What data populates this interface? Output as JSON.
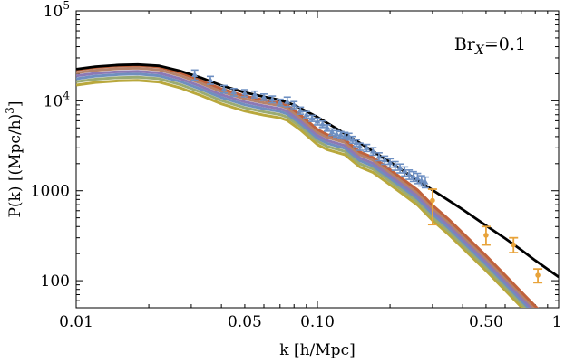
{
  "chart_data": {
    "type": "line",
    "x_scale": "log",
    "y_scale": "log",
    "xlim": [
      0.01,
      1
    ],
    "ylim": [
      50,
      100000
    ],
    "xlabel": "k   [h/Mpc]",
    "ylabel": "P(k)   [(Mpc/h)³]",
    "annotation": {
      "base": "Br",
      "sub": "X",
      "rest": "=0.1",
      "position": "top-right"
    },
    "x_ticks": [
      {
        "value": 0.01,
        "label": "0.01"
      },
      {
        "value": 0.05,
        "label": "0.05"
      },
      {
        "value": 0.1,
        "label": "0.10"
      },
      {
        "value": 0.5,
        "label": "0.50"
      },
      {
        "value": 1,
        "label": "1"
      }
    ],
    "y_ticks": [
      {
        "value": 100,
        "label": "100"
      },
      {
        "value": 1000,
        "label": "1000"
      },
      {
        "value": 10000,
        "label": "10",
        "exp": "4"
      },
      {
        "value": 100000,
        "label": "10",
        "exp": "5"
      }
    ],
    "grid": false,
    "colors": {
      "reference": "#000000",
      "band": [
        "#c0623c",
        "#b5836b",
        "#8c79b5",
        "#6f8fbf",
        "#9aab74",
        "#b9a83c"
      ],
      "sdss": "#6d8fc2",
      "lyman_alpha": "#e8a33a"
    },
    "reference_curve": {
      "x": [
        0.01,
        0.012,
        0.015,
        0.018,
        0.022,
        0.027,
        0.033,
        0.04,
        0.05,
        0.06,
        0.07,
        0.08,
        0.1,
        0.12,
        0.15,
        0.2,
        0.25,
        0.3,
        0.4,
        0.5,
        0.6,
        0.7,
        0.8,
        1.0
      ],
      "y": [
        22500,
        24000,
        25000,
        25300,
        24500,
        21500,
        18000,
        14800,
        12400,
        11100,
        10200,
        9000,
        6600,
        4900,
        3400,
        2080,
        1400,
        1020,
        620,
        410,
        295,
        220,
        168,
        110
      ]
    },
    "model_curves": {
      "x": [
        0.01,
        0.012,
        0.015,
        0.018,
        0.022,
        0.027,
        0.033,
        0.04,
        0.05,
        0.06,
        0.07,
        0.075,
        0.085,
        0.1,
        0.11,
        0.13,
        0.15,
        0.17,
        0.19,
        0.22,
        0.26,
        0.3,
        0.35,
        0.4,
        0.5,
        0.6,
        0.7,
        0.8,
        1.0
      ],
      "y": [
        22000,
        23500,
        24500,
        24800,
        23800,
        20500,
        16800,
        13600,
        11300,
        10200,
        9500,
        8900,
        7000,
        4800,
        4200,
        3700,
        2700,
        2350,
        1900,
        1420,
        1020,
        690,
        480,
        340,
        190,
        115,
        75,
        52,
        28
      ],
      "offsets": [
        1.0,
        0.93,
        0.86,
        0.8,
        0.74,
        0.68
      ]
    },
    "sdss_points": [
      {
        "x": 0.031,
        "y": 19500,
        "err": 2500
      },
      {
        "x": 0.036,
        "y": 17000,
        "err": 1700
      },
      {
        "x": 0.041,
        "y": 13500,
        "err": 1300
      },
      {
        "x": 0.045,
        "y": 12500,
        "err": 1200
      },
      {
        "x": 0.05,
        "y": 12200,
        "err": 1100
      },
      {
        "x": 0.055,
        "y": 11800,
        "err": 1000
      },
      {
        "x": 0.06,
        "y": 11000,
        "err": 900
      },
      {
        "x": 0.065,
        "y": 10400,
        "err": 900
      },
      {
        "x": 0.07,
        "y": 9600,
        "err": 800
      },
      {
        "x": 0.075,
        "y": 9800,
        "err": 1200
      },
      {
        "x": 0.08,
        "y": 9000,
        "err": 800
      },
      {
        "x": 0.085,
        "y": 7800,
        "err": 700
      },
      {
        "x": 0.09,
        "y": 7000,
        "err": 600
      },
      {
        "x": 0.095,
        "y": 6400,
        "err": 500
      },
      {
        "x": 0.1,
        "y": 5900,
        "err": 500
      },
      {
        "x": 0.105,
        "y": 5500,
        "err": 450
      },
      {
        "x": 0.11,
        "y": 5000,
        "err": 400
      },
      {
        "x": 0.115,
        "y": 4500,
        "err": 380
      },
      {
        "x": 0.12,
        "y": 4300,
        "err": 350
      },
      {
        "x": 0.125,
        "y": 4200,
        "err": 350
      },
      {
        "x": 0.13,
        "y": 4100,
        "err": 350
      },
      {
        "x": 0.135,
        "y": 4000,
        "err": 350
      },
      {
        "x": 0.14,
        "y": 3700,
        "err": 320
      },
      {
        "x": 0.145,
        "y": 3400,
        "err": 300
      },
      {
        "x": 0.15,
        "y": 3100,
        "err": 280
      },
      {
        "x": 0.16,
        "y": 3000,
        "err": 270
      },
      {
        "x": 0.17,
        "y": 2750,
        "err": 260
      },
      {
        "x": 0.18,
        "y": 2400,
        "err": 240
      },
      {
        "x": 0.19,
        "y": 2200,
        "err": 230
      },
      {
        "x": 0.2,
        "y": 2050,
        "err": 220
      },
      {
        "x": 0.21,
        "y": 1900,
        "err": 210
      },
      {
        "x": 0.22,
        "y": 1780,
        "err": 200
      },
      {
        "x": 0.23,
        "y": 1650,
        "err": 190
      },
      {
        "x": 0.24,
        "y": 1520,
        "err": 180
      },
      {
        "x": 0.25,
        "y": 1450,
        "err": 180
      },
      {
        "x": 0.26,
        "y": 1380,
        "err": 180
      },
      {
        "x": 0.27,
        "y": 1300,
        "err": 170
      },
      {
        "x": 0.28,
        "y": 1250,
        "err": 170
      }
    ],
    "lyman_alpha_points": [
      {
        "x": 0.3,
        "y": 780,
        "err_low": 360,
        "err_high": 260
      },
      {
        "x": 0.5,
        "y": 320,
        "err_low": 70,
        "err_high": 80
      },
      {
        "x": 0.65,
        "y": 250,
        "err_low": 45,
        "err_high": 50
      },
      {
        "x": 0.82,
        "y": 115,
        "err_low": 20,
        "err_high": 20
      }
    ]
  }
}
